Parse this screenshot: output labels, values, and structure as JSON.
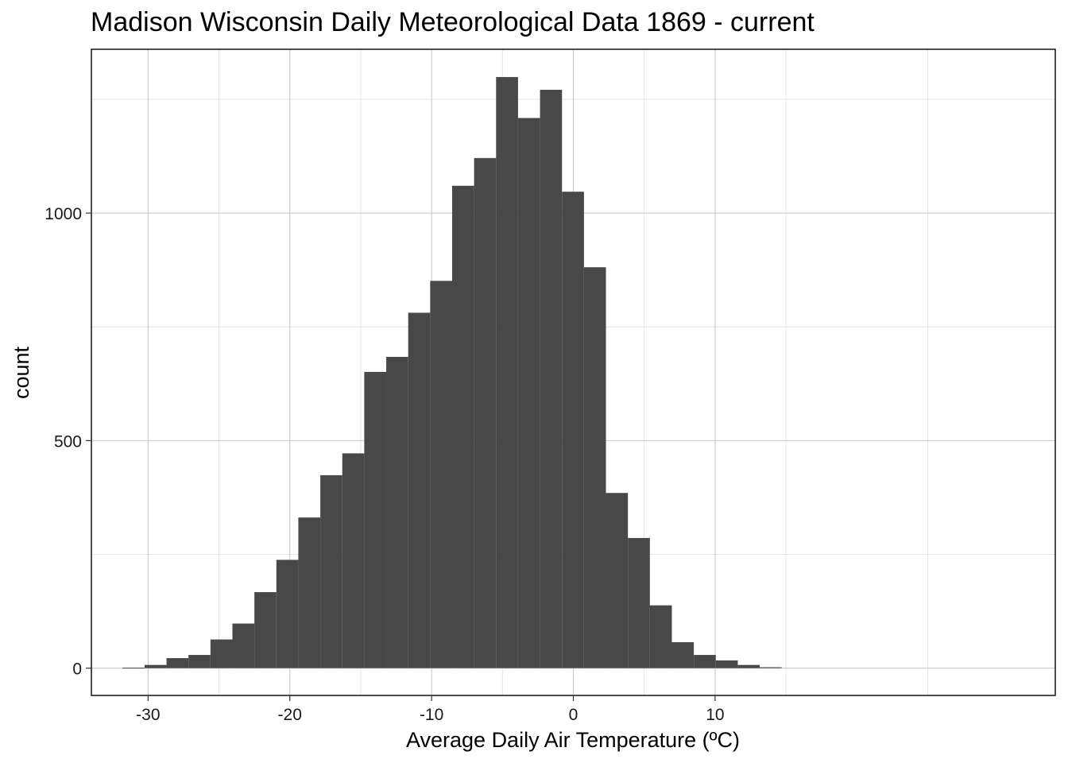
{
  "chart_data": {
    "type": "bar",
    "subtype": "histogram",
    "title": "Madison Wisconsin Daily Meteorological Data 1869 - current",
    "xlabel": "Average Daily Air Temperature (ºC)",
    "ylabel": "count",
    "xlim": [
      -34,
      34
    ],
    "ylim": [
      -60,
      1360
    ],
    "x_ticks": [
      -30,
      -20,
      -10,
      0,
      10
    ],
    "y_ticks": [
      0,
      500,
      1000
    ],
    "grid": true,
    "bar_color": "#484848",
    "bins": [
      {
        "x0": -31.8,
        "x1": -30.25,
        "count": 1
      },
      {
        "x0": -30.25,
        "x1": -28.7,
        "count": 7
      },
      {
        "x0": -28.7,
        "x1": -27.15,
        "count": 22
      },
      {
        "x0": -27.15,
        "x1": -25.6,
        "count": 29
      },
      {
        "x0": -25.6,
        "x1": -24.05,
        "count": 63
      },
      {
        "x0": -24.05,
        "x1": -22.5,
        "count": 98
      },
      {
        "x0": -22.5,
        "x1": -20.95,
        "count": 167
      },
      {
        "x0": -20.95,
        "x1": -19.4,
        "count": 238
      },
      {
        "x0": -19.4,
        "x1": -17.85,
        "count": 331
      },
      {
        "x0": -17.85,
        "x1": -16.3,
        "count": 424
      },
      {
        "x0": -16.3,
        "x1": -14.75,
        "count": 472
      },
      {
        "x0": -14.75,
        "x1": -13.2,
        "count": 651
      },
      {
        "x0": -13.2,
        "x1": -11.65,
        "count": 684
      },
      {
        "x0": -11.65,
        "x1": -10.1,
        "count": 781
      },
      {
        "x0": -10.1,
        "x1": -8.55,
        "count": 851
      },
      {
        "x0": -8.55,
        "x1": -7.0,
        "count": 1060
      },
      {
        "x0": -7.0,
        "x1": -5.45,
        "count": 1121
      },
      {
        "x0": -5.45,
        "x1": -3.9,
        "count": 1299
      },
      {
        "x0": -3.9,
        "x1": -2.35,
        "count": 1209
      },
      {
        "x0": -2.35,
        "x1": -0.8,
        "count": 1271
      },
      {
        "x0": -0.8,
        "x1": 0.75,
        "count": 1047
      },
      {
        "x0": 0.75,
        "x1": 2.3,
        "count": 881
      },
      {
        "x0": 2.3,
        "x1": 3.85,
        "count": 385
      },
      {
        "x0": 3.85,
        "x1": 5.4,
        "count": 286
      },
      {
        "x0": 5.4,
        "x1": 6.95,
        "count": 138
      },
      {
        "x0": 6.95,
        "x1": 8.5,
        "count": 57
      },
      {
        "x0": 8.5,
        "x1": 10.05,
        "count": 29
      },
      {
        "x0": 10.05,
        "x1": 11.6,
        "count": 17
      },
      {
        "x0": 11.6,
        "x1": 13.15,
        "count": 7
      },
      {
        "x0": 13.15,
        "x1": 14.7,
        "count": 2
      }
    ]
  }
}
